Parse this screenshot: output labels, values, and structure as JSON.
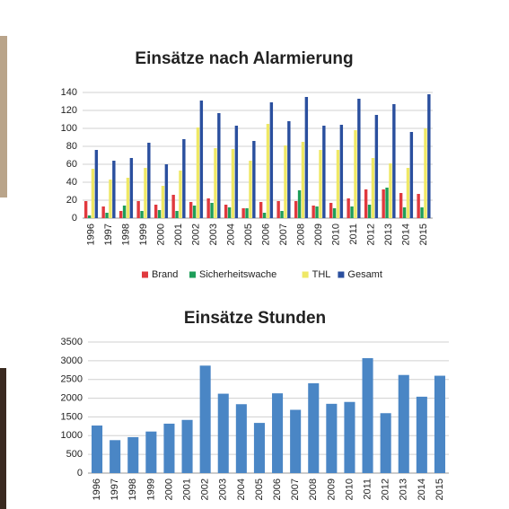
{
  "chart_data": [
    {
      "type": "bar",
      "title": "Einsätze nach Alarmierung",
      "categories": [
        "1996",
        "1997",
        "1998",
        "1999",
        "2000",
        "2001",
        "2002",
        "2003",
        "2004",
        "2005",
        "2006",
        "2007",
        "2008",
        "2009",
        "2010",
        "2011",
        "2012",
        "2013",
        "2014",
        "2015"
      ],
      "series": [
        {
          "name": "Brand",
          "color": "#e0393e",
          "values": [
            19,
            13,
            8,
            19,
            15,
            26,
            18,
            22,
            15,
            11,
            18,
            19,
            19,
            14,
            17,
            22,
            32,
            32,
            28,
            27
          ]
        },
        {
          "name": "Sicherheitswache",
          "color": "#1f9e5a",
          "values": [
            3,
            6,
            14,
            8,
            9,
            8,
            14,
            17,
            12,
            11,
            6,
            8,
            31,
            13,
            11,
            13,
            15,
            34,
            12,
            12
          ]
        },
        {
          "name": "THL",
          "color": "#efe865",
          "values": [
            55,
            43,
            45,
            56,
            36,
            53,
            101,
            78,
            77,
            64,
            105,
            81,
            85,
            76,
            76,
            98,
            67,
            61,
            56,
            100
          ]
        },
        {
          "name": "Gesamt",
          "color": "#2a4f9e",
          "values": [
            76,
            64,
            67,
            84,
            60,
            88,
            131,
            117,
            103,
            86,
            129,
            108,
            135,
            103,
            104,
            133,
            115,
            127,
            96,
            138
          ]
        }
      ],
      "ylim": [
        0,
        140
      ],
      "yticks": [
        0,
        20,
        40,
        60,
        80,
        100,
        120,
        140
      ],
      "grid": true,
      "legend": "bottom"
    },
    {
      "type": "bar",
      "title": "Einsätze Stunden",
      "categories": [
        "1996",
        "1997",
        "1998",
        "1999",
        "2000",
        "2001",
        "2002",
        "2003",
        "2004",
        "2005",
        "2006",
        "2007",
        "2008",
        "2009",
        "2010",
        "2011",
        "2012",
        "2013",
        "2014",
        "2015"
      ],
      "values": [
        1270,
        880,
        960,
        1110,
        1320,
        1420,
        2870,
        2120,
        1840,
        1340,
        2130,
        1690,
        2400,
        1850,
        1900,
        3070,
        1600,
        2620,
        2040,
        2600
      ],
      "color": "#4a86c5",
      "ylim": [
        0,
        3500
      ],
      "yticks": [
        0,
        500,
        1000,
        1500,
        2000,
        2500,
        3000,
        3500
      ],
      "grid": true
    }
  ]
}
